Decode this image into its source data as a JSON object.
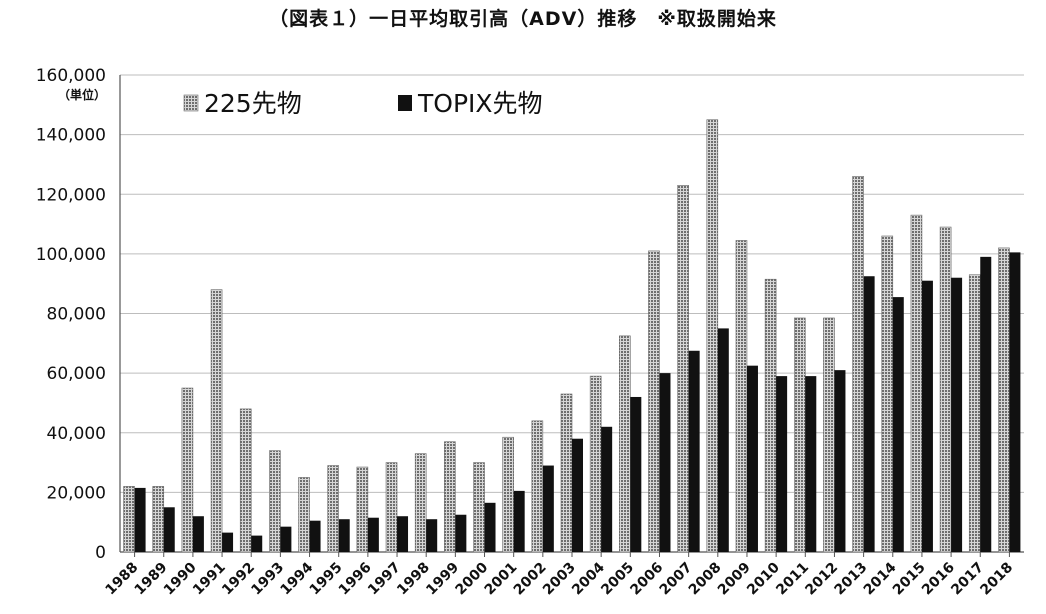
{
  "chart_data": {
    "type": "bar",
    "title": "（図表１）一日平均取引高（ADV）推移　※取扱開始来",
    "unit_label": "（単位）",
    "categories": [
      "1988",
      "1989",
      "1990",
      "1991",
      "1992",
      "1993",
      "1994",
      "1995",
      "1996",
      "1997",
      "1998",
      "1999",
      "2000",
      "2001",
      "2002",
      "2003",
      "2004",
      "2005",
      "2006",
      "2007",
      "2008",
      "2009",
      "2010",
      "2011",
      "2012",
      "2013",
      "2014",
      "2015",
      "2016",
      "2017",
      "2018"
    ],
    "series": [
      {
        "name": "225先物",
        "color": "#8a8a8a",
        "pattern": "dotted-gray",
        "values": [
          22000,
          22000,
          55000,
          88000,
          48000,
          34000,
          25000,
          29000,
          28500,
          30000,
          33000,
          37000,
          30000,
          38500,
          44000,
          53000,
          59000,
          72500,
          101000,
          123000,
          145000,
          104500,
          91500,
          78500,
          78500,
          126000,
          106000,
          113000,
          109000,
          93000,
          102000
        ]
      },
      {
        "name": "TOPIX先物",
        "color": "#111111",
        "pattern": "solid",
        "values": [
          21500,
          15000,
          12000,
          6500,
          5500,
          8500,
          10500,
          11000,
          11500,
          12000,
          11000,
          12500,
          16500,
          20500,
          29000,
          38000,
          42000,
          52000,
          60000,
          67500,
          75000,
          62500,
          59000,
          59000,
          61000,
          92500,
          85500,
          91000,
          92000,
          99000,
          100500
        ]
      }
    ],
    "y_ticks": [
      "160,000",
      "140,000",
      "120,000",
      "100,000",
      "80,000",
      "60,000",
      "40,000",
      "20,000",
      "0"
    ],
    "ylim": [
      0,
      160000
    ],
    "grid": true,
    "legend_position": "top-left"
  }
}
